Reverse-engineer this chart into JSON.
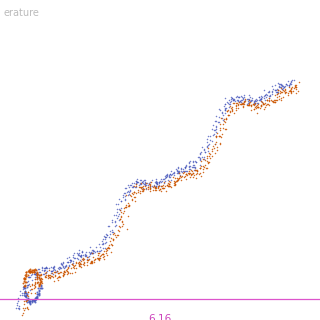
{
  "title": "erature",
  "background_color": "#ffffff",
  "title_bg_color": "#111111",
  "title_text_color": "#bbbbbb",
  "hline_color": "#dd55cc",
  "hline_label": "6.16",
  "hline_label_color": "#cc44bb",
  "color_up": "#cc5500",
  "color_down": "#4455bb",
  "figsize": [
    3.2,
    3.2
  ],
  "dpi": 100,
  "seed": 42
}
